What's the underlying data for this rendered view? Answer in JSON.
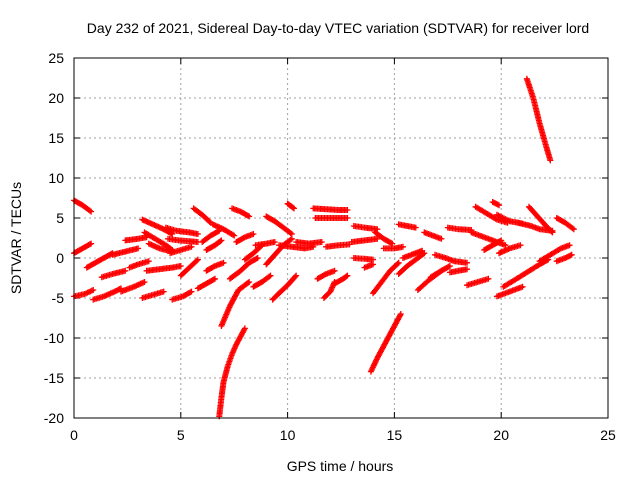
{
  "chart_data": {
    "type": "scatter",
    "title": "Day 232 of 2021, Sidereal Day-to-day VTEC variation (SDTVAR) for receiver lord",
    "xlabel": "GPS time / hours",
    "ylabel": "SDTVAR / TECUs",
    "xlim": [
      0,
      25
    ],
    "ylim": [
      -20,
      25
    ],
    "xticks": [
      "0",
      "5",
      "10",
      "15",
      "20",
      "25"
    ],
    "yticks": [
      "-20",
      "-15",
      "-10",
      "-5",
      "0",
      "5",
      "10",
      "15",
      "20",
      "25"
    ],
    "grid": true,
    "marker": "plus",
    "color": "#ff0000",
    "tracks": [
      [
        [
          0.0,
          7.2
        ],
        [
          0.4,
          6.6
        ],
        [
          0.8,
          5.8
        ]
      ],
      [
        [
          0.0,
          0.6
        ],
        [
          0.4,
          1.2
        ],
        [
          0.8,
          1.8
        ]
      ],
      [
        [
          0.0,
          -4.8
        ],
        [
          0.5,
          -4.5
        ],
        [
          0.9,
          -4.0
        ]
      ],
      [
        [
          0.6,
          -1.2
        ],
        [
          1.0,
          -0.6
        ],
        [
          1.4,
          0.0
        ],
        [
          1.8,
          0.6
        ]
      ],
      [
        [
          0.9,
          -5.2
        ],
        [
          1.4,
          -4.8
        ],
        [
          1.9,
          -4.2
        ],
        [
          2.2,
          -3.8
        ]
      ],
      [
        [
          1.3,
          -2.4
        ],
        [
          1.8,
          -2.0
        ],
        [
          2.4,
          -1.6
        ]
      ],
      [
        [
          1.8,
          0.4
        ],
        [
          2.4,
          0.8
        ],
        [
          3.0,
          1.2
        ]
      ],
      [
        [
          2.2,
          -4.2
        ],
        [
          2.8,
          -3.6
        ],
        [
          3.3,
          -3.0
        ]
      ],
      [
        [
          2.6,
          -1.2
        ],
        [
          3.0,
          -0.8
        ],
        [
          3.5,
          -0.4
        ]
      ],
      [
        [
          2.4,
          2.2
        ],
        [
          3.0,
          2.4
        ],
        [
          3.4,
          2.6
        ]
      ],
      [
        [
          3.2,
          -5.0
        ],
        [
          3.7,
          -4.6
        ],
        [
          4.2,
          -4.2
        ]
      ],
      [
        [
          3.2,
          4.8
        ],
        [
          3.7,
          4.2
        ],
        [
          4.2,
          3.6
        ],
        [
          4.6,
          3.0
        ]
      ],
      [
        [
          3.3,
          3.2
        ],
        [
          3.8,
          2.4
        ],
        [
          4.3,
          1.6
        ],
        [
          4.6,
          1.0
        ]
      ],
      [
        [
          3.4,
          -1.6
        ],
        [
          4.0,
          -1.4
        ],
        [
          4.6,
          -1.2
        ],
        [
          5.0,
          -1.0
        ]
      ],
      [
        [
          3.5,
          1.8
        ],
        [
          4.0,
          1.2
        ],
        [
          4.6,
          0.8
        ]
      ],
      [
        [
          4.3,
          3.8
        ],
        [
          4.8,
          3.4
        ],
        [
          5.4,
          3.2
        ],
        [
          5.8,
          3.0
        ]
      ],
      [
        [
          4.4,
          2.4
        ],
        [
          4.9,
          2.2
        ],
        [
          5.4,
          2.1
        ],
        [
          5.8,
          2.0
        ]
      ],
      [
        [
          4.5,
          0.6
        ],
        [
          5.0,
          1.0
        ],
        [
          5.5,
          1.4
        ]
      ],
      [
        [
          4.6,
          -5.2
        ],
        [
          5.1,
          -4.8
        ],
        [
          5.5,
          -4.2
        ]
      ],
      [
        [
          5.0,
          -2.2
        ],
        [
          5.4,
          -1.2
        ],
        [
          5.8,
          -0.2
        ]
      ],
      [
        [
          5.6,
          6.2
        ],
        [
          6.0,
          5.4
        ],
        [
          6.4,
          4.4
        ]
      ],
      [
        [
          5.8,
          -3.8
        ],
        [
          6.2,
          -3.2
        ],
        [
          6.6,
          -2.6
        ]
      ],
      [
        [
          6.0,
          2.0
        ],
        [
          6.4,
          2.8
        ],
        [
          6.8,
          3.4
        ]
      ],
      [
        [
          6.2,
          -1.6
        ],
        [
          6.6,
          -1.0
        ],
        [
          7.0,
          -0.6
        ]
      ],
      [
        [
          6.2,
          1.0
        ],
        [
          6.6,
          1.6
        ],
        [
          6.9,
          2.2
        ]
      ],
      [
        [
          6.5,
          4.2
        ],
        [
          7.0,
          3.6
        ],
        [
          7.5,
          2.8
        ]
      ],
      [
        [
          6.9,
          -8.5
        ],
        [
          7.3,
          -6.0
        ],
        [
          7.7,
          -4.0
        ],
        [
          8.2,
          -3.0
        ]
      ],
      [
        [
          6.8,
          -19.8
        ],
        [
          6.9,
          -17.5
        ],
        [
          7.0,
          -15.5
        ],
        [
          7.2,
          -13.5
        ],
        [
          7.4,
          -12.0
        ],
        [
          7.6,
          -10.8
        ],
        [
          7.8,
          -9.8
        ],
        [
          8.0,
          -8.8
        ]
      ],
      [
        [
          7.3,
          -2.6
        ],
        [
          7.8,
          -1.6
        ],
        [
          8.2,
          -0.6
        ],
        [
          8.6,
          0.0
        ]
      ],
      [
        [
          7.4,
          6.2
        ],
        [
          7.8,
          5.8
        ],
        [
          8.2,
          5.2
        ]
      ],
      [
        [
          7.6,
          2.0
        ],
        [
          8.0,
          2.6
        ],
        [
          8.4,
          3.0
        ]
      ],
      [
        [
          8.0,
          -0.2
        ],
        [
          8.4,
          0.6
        ],
        [
          8.8,
          1.6
        ]
      ],
      [
        [
          8.4,
          -3.6
        ],
        [
          8.8,
          -3.0
        ],
        [
          9.2,
          -2.2
        ]
      ],
      [
        [
          8.5,
          1.6
        ],
        [
          9.0,
          1.8
        ],
        [
          9.4,
          2.0
        ]
      ],
      [
        [
          9.0,
          5.2
        ],
        [
          9.4,
          4.6
        ],
        [
          9.8,
          3.8
        ],
        [
          10.2,
          3.0
        ]
      ],
      [
        [
          9.0,
          -0.8
        ],
        [
          9.4,
          0.4
        ],
        [
          9.8,
          1.6
        ],
        [
          10.2,
          2.4
        ]
      ],
      [
        [
          9.3,
          -5.2
        ],
        [
          9.6,
          -4.4
        ],
        [
          10.0,
          -3.4
        ],
        [
          10.4,
          -2.2
        ]
      ],
      [
        [
          9.6,
          1.6
        ],
        [
          10.2,
          1.4
        ],
        [
          10.8,
          1.2
        ],
        [
          11.2,
          1.4
        ]
      ],
      [
        [
          10.0,
          6.8
        ],
        [
          10.3,
          6.2
        ]
      ],
      [
        [
          10.4,
          2.0
        ],
        [
          11.0,
          1.8
        ],
        [
          11.6,
          2.0
        ]
      ],
      [
        [
          11.2,
          6.2
        ],
        [
          11.8,
          6.1
        ],
        [
          12.4,
          6.0
        ],
        [
          12.8,
          6.0
        ]
      ],
      [
        [
          11.3,
          5.0
        ],
        [
          11.8,
          5.0
        ],
        [
          12.3,
          5.0
        ],
        [
          12.8,
          5.0
        ]
      ],
      [
        [
          11.8,
          1.4
        ],
        [
          12.4,
          1.6
        ],
        [
          12.9,
          1.7
        ]
      ],
      [
        [
          11.4,
          -2.6
        ],
        [
          11.8,
          -2.0
        ],
        [
          12.2,
          -1.6
        ]
      ],
      [
        [
          11.7,
          -5.0
        ],
        [
          12.0,
          -4.2
        ],
        [
          12.2,
          -3.0
        ]
      ],
      [
        [
          12.2,
          -3.2
        ],
        [
          12.6,
          -2.6
        ],
        [
          12.8,
          -2.2
        ]
      ],
      [
        [
          13.1,
          4.0
        ],
        [
          13.6,
          3.8
        ],
        [
          14.2,
          3.6
        ]
      ],
      [
        [
          13.0,
          2.0
        ],
        [
          13.6,
          2.2
        ],
        [
          14.2,
          2.4
        ]
      ],
      [
        [
          13.1,
          0.0
        ],
        [
          13.6,
          -0.1
        ],
        [
          14.0,
          -0.2
        ]
      ],
      [
        [
          13.6,
          -1.2
        ],
        [
          14.0,
          -0.8
        ]
      ],
      [
        [
          14.0,
          -4.4
        ],
        [
          14.4,
          -3.0
        ],
        [
          14.8,
          -1.6
        ],
        [
          15.2,
          -0.6
        ]
      ],
      [
        [
          13.9,
          -14.2
        ],
        [
          14.2,
          -12.5
        ],
        [
          14.6,
          -10.5
        ],
        [
          15.0,
          -8.5
        ],
        [
          15.3,
          -7.0
        ]
      ],
      [
        [
          14.1,
          3.2
        ],
        [
          14.5,
          2.4
        ],
        [
          14.9,
          1.8
        ]
      ],
      [
        [
          14.5,
          1.2
        ],
        [
          15.0,
          1.2
        ],
        [
          15.4,
          1.4
        ]
      ],
      [
        [
          15.2,
          4.2
        ],
        [
          15.6,
          4.0
        ],
        [
          16.0,
          3.8
        ]
      ],
      [
        [
          15.2,
          -2.0
        ],
        [
          15.6,
          -1.0
        ],
        [
          16.0,
          -0.2
        ],
        [
          16.4,
          0.6
        ]
      ],
      [
        [
          15.4,
          0.0
        ],
        [
          15.8,
          0.4
        ],
        [
          16.3,
          0.9
        ]
      ],
      [
        [
          16.1,
          -4.0
        ],
        [
          16.6,
          -2.8
        ],
        [
          17.2,
          -1.6
        ]
      ],
      [
        [
          16.4,
          3.2
        ],
        [
          16.8,
          2.8
        ],
        [
          17.2,
          2.4
        ]
      ],
      [
        [
          16.7,
          -2.4
        ],
        [
          17.2,
          -1.6
        ],
        [
          17.6,
          -1.0
        ]
      ],
      [
        [
          16.9,
          0.4
        ],
        [
          17.4,
          0.0
        ],
        [
          17.8,
          -0.4
        ],
        [
          18.4,
          -0.6
        ]
      ],
      [
        [
          17.6,
          -1.8
        ],
        [
          18.0,
          -1.6
        ],
        [
          18.4,
          -1.4
        ]
      ],
      [
        [
          17.5,
          3.8
        ],
        [
          18.0,
          3.6
        ],
        [
          18.6,
          3.5
        ]
      ],
      [
        [
          18.4,
          -3.4
        ],
        [
          18.9,
          -3.0
        ],
        [
          19.4,
          -2.6
        ]
      ],
      [
        [
          18.6,
          3.2
        ],
        [
          19.2,
          2.6
        ],
        [
          19.8,
          2.0
        ],
        [
          20.2,
          1.6
        ]
      ],
      [
        [
          18.8,
          6.4
        ],
        [
          19.3,
          5.6
        ],
        [
          19.8,
          4.8
        ],
        [
          20.3,
          4.4
        ]
      ],
      [
        [
          19.2,
          1.0
        ],
        [
          19.6,
          1.6
        ],
        [
          20.0,
          2.2
        ]
      ],
      [
        [
          19.6,
          7.0
        ],
        [
          19.9,
          6.6
        ]
      ],
      [
        [
          19.8,
          5.4
        ],
        [
          20.4,
          4.6
        ],
        [
          21.0,
          4.3
        ]
      ],
      [
        [
          19.8,
          -4.8
        ],
        [
          20.4,
          -4.2
        ],
        [
          21.0,
          -3.6
        ]
      ],
      [
        [
          19.9,
          0.6
        ],
        [
          20.4,
          1.2
        ],
        [
          20.9,
          1.6
        ]
      ],
      [
        [
          20.1,
          -3.6
        ],
        [
          20.6,
          -2.8
        ],
        [
          21.2,
          -1.8
        ],
        [
          21.8,
          -0.8
        ],
        [
          22.2,
          -0.2
        ]
      ],
      [
        [
          20.8,
          4.4
        ],
        [
          21.4,
          4.0
        ],
        [
          21.8,
          3.6
        ],
        [
          22.4,
          3.4
        ]
      ],
      [
        [
          21.2,
          22.4
        ],
        [
          21.5,
          20.0
        ],
        [
          21.8,
          16.8
        ],
        [
          22.1,
          14.0
        ],
        [
          22.3,
          12.2
        ]
      ],
      [
        [
          21.3,
          6.4
        ],
        [
          21.7,
          5.2
        ],
        [
          22.1,
          4.0
        ],
        [
          22.4,
          3.2
        ]
      ],
      [
        [
          21.8,
          -0.4
        ],
        [
          22.3,
          0.4
        ],
        [
          22.8,
          1.2
        ],
        [
          23.2,
          1.6
        ]
      ],
      [
        [
          22.6,
          -0.4
        ],
        [
          23.0,
          0.0
        ],
        [
          23.3,
          0.4
        ]
      ],
      [
        [
          22.6,
          5.0
        ],
        [
          23.0,
          4.4
        ],
        [
          23.4,
          3.6
        ]
      ]
    ]
  }
}
